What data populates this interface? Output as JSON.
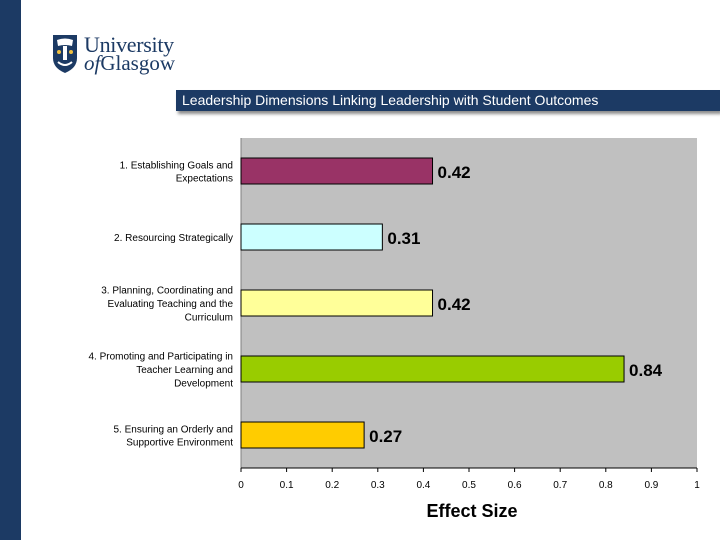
{
  "slide": {
    "title": "Leadership Dimensions Linking Leadership with Student Outcomes",
    "logo": {
      "line1": "University",
      "line2_prefix": "of",
      "line2_rest": "Glasgow"
    },
    "colors": {
      "navy": "#1c3a64",
      "plot_bg": "#c0c0c0"
    }
  },
  "chart_data": {
    "type": "bar",
    "orientation": "horizontal",
    "title": "",
    "xlabel": "Effect Size",
    "ylabel": "",
    "xlim": [
      0,
      1
    ],
    "xticks": [
      "0",
      "0.1",
      "0.2",
      "0.3",
      "0.4",
      "0.5",
      "0.6",
      "0.7",
      "0.8",
      "0.9",
      "1"
    ],
    "grid": false,
    "categories": [
      [
        "1. Establishing Goals and",
        "Expectations"
      ],
      [
        "2. Resourcing Strategically"
      ],
      [
        "3. Planning, Coordinating and",
        "Evaluating Teaching and the",
        "Curriculum"
      ],
      [
        "4. Promoting and Participating in",
        "Teacher Learning and",
        "Development"
      ],
      [
        "5. Ensuring an Orderly and",
        "Supportive Environment"
      ]
    ],
    "values": [
      0.42,
      0.31,
      0.42,
      0.84,
      0.27
    ],
    "data_labels": [
      "0.42",
      "0.31",
      "0.42",
      "0.84",
      "0.27"
    ],
    "bar_colors": [
      "#993366",
      "#ccffff",
      "#ffff99",
      "#99cc00",
      "#ffcc00"
    ]
  }
}
